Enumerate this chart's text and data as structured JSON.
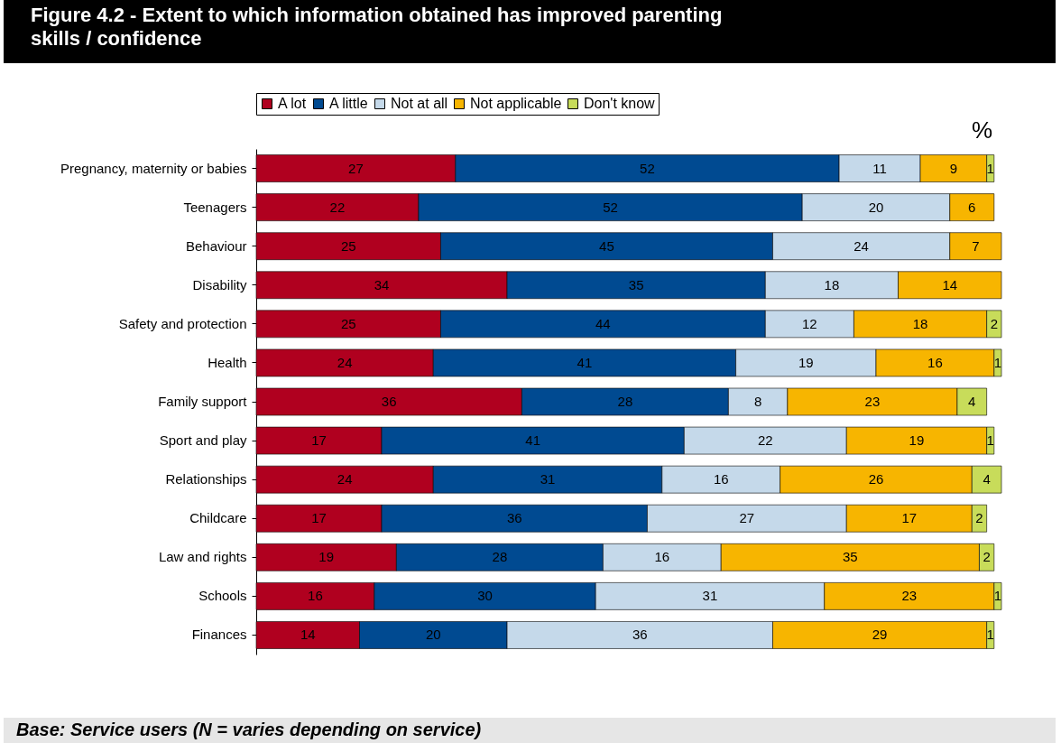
{
  "chart_data": {
    "type": "bar",
    "orientation": "horizontal",
    "stacked": true,
    "title": "Figure 4.2 - Extent to which information obtained has improved parenting skills / confidence",
    "categories": [
      "Pregnancy, maternity or babies",
      "Teenagers",
      "Behaviour",
      "Disability",
      "Safety and protection",
      "Health",
      "Family support",
      "Sport and play",
      "Relationships",
      "Childcare",
      "Law  and rights",
      "Schools",
      "Finances"
    ],
    "series": [
      {
        "name": "A lot",
        "color": "#b0001f",
        "values": [
          27,
          22,
          25,
          34,
          25,
          24,
          36,
          17,
          24,
          17,
          19,
          16,
          14
        ]
      },
      {
        "name": "A little",
        "color": "#004a91",
        "values": [
          52,
          52,
          45,
          35,
          44,
          41,
          28,
          41,
          31,
          36,
          28,
          30,
          20
        ]
      },
      {
        "name": "Not at all",
        "color": "#c5d9ea",
        "values": [
          11,
          20,
          24,
          18,
          12,
          19,
          8,
          22,
          16,
          27,
          16,
          31,
          36
        ]
      },
      {
        "name": "Not applicable",
        "color": "#f7b500",
        "values": [
          9,
          6,
          7,
          14,
          18,
          16,
          23,
          19,
          26,
          17,
          35,
          23,
          29
        ]
      },
      {
        "name": "Don't know",
        "color": "#c8dc5a",
        "values": [
          1,
          null,
          null,
          null,
          2,
          1,
          4,
          1,
          4,
          2,
          2,
          1,
          1
        ]
      }
    ],
    "data_labels": true,
    "legend": "top",
    "grid": false,
    "annotations": [
      "%",
      "Base: Service users (N = varies depending on service)"
    ]
  }
}
